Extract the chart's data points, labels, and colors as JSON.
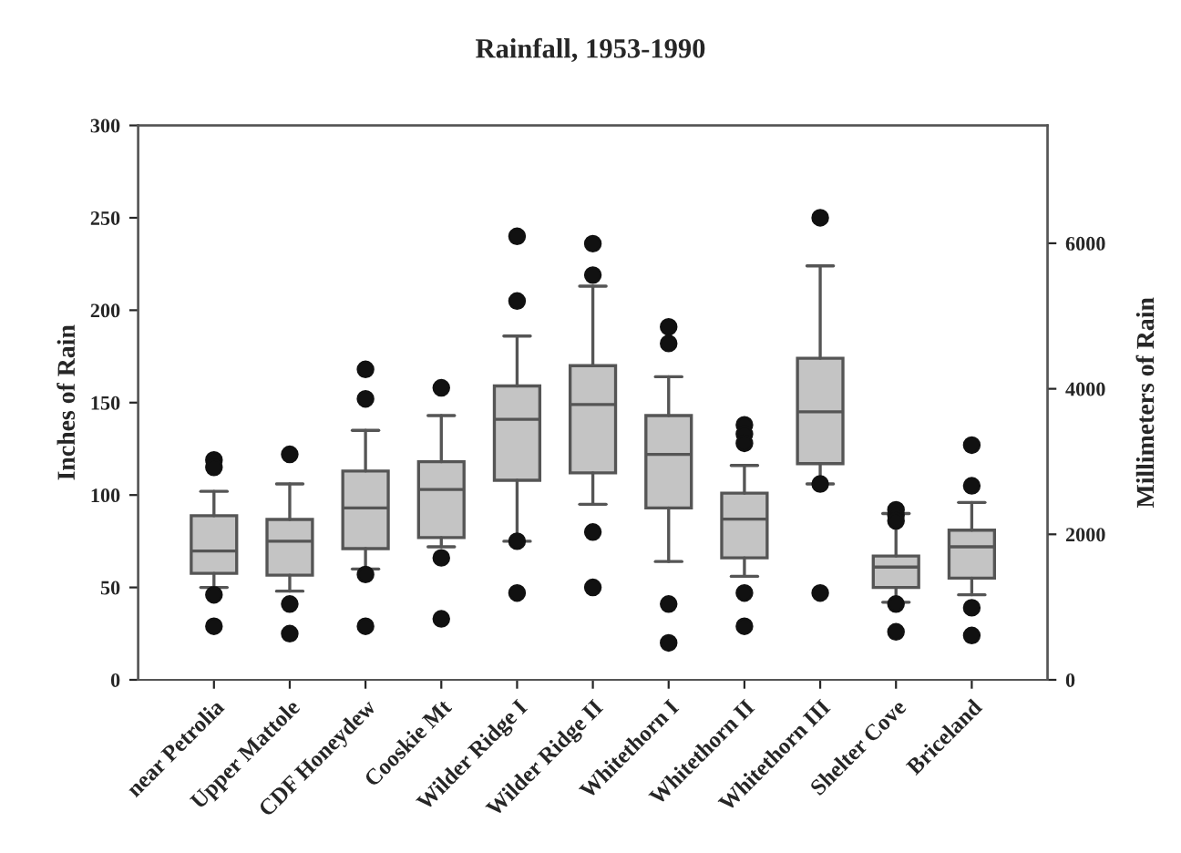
{
  "chart_data": {
    "type": "box",
    "title": "Rainfall, 1953-1990",
    "ylabel": "Inches of Rain",
    "y2label": "Millimeters of Rain",
    "categories": [
      "near Petrolia",
      "Upper Mattole",
      "CDF Honeydew",
      "Cooskie Mt",
      "Wilder Ridge I",
      "Wilder Ridge II",
      "Whitethorn I",
      "Whitethorn II",
      "Whitethorn III",
      "Shelter Cove",
      "Briceland"
    ],
    "boxes": [
      {
        "low": 50,
        "q1": 57.6,
        "median": 69.7,
        "q3": 88.8,
        "high": 102,
        "outliers": [
          119,
          115,
          46,
          29
        ]
      },
      {
        "low": 48,
        "q1": 56.6,
        "median": 75,
        "q3": 86.8,
        "high": 106,
        "outliers": [
          122,
          41,
          25
        ]
      },
      {
        "low": 60,
        "q1": 71,
        "median": 93,
        "q3": 113,
        "high": 135,
        "outliers": [
          168,
          152,
          57,
          29
        ]
      },
      {
        "low": 72,
        "q1": 77,
        "median": 103,
        "q3": 118,
        "high": 143,
        "outliers": [
          158,
          66,
          33
        ]
      },
      {
        "low": 75,
        "q1": 108,
        "median": 141,
        "q3": 159,
        "high": 186,
        "outliers": [
          240,
          205,
          75,
          47
        ]
      },
      {
        "low": 95,
        "q1": 112,
        "median": 149,
        "q3": 170,
        "high": 213,
        "outliers": [
          236,
          219,
          80,
          50
        ]
      },
      {
        "low": 64,
        "q1": 93,
        "median": 122,
        "q3": 143,
        "high": 164,
        "outliers": [
          191,
          182,
          41,
          20
        ]
      },
      {
        "low": 56,
        "q1": 66,
        "median": 87,
        "q3": 101,
        "high": 116,
        "outliers": [
          138,
          133,
          128,
          47,
          29
        ]
      },
      {
        "low": 106,
        "q1": 117,
        "median": 145,
        "q3": 174,
        "high": 224,
        "outliers": [
          250,
          106,
          47
        ]
      },
      {
        "low": 42,
        "q1": 50,
        "median": 61,
        "q3": 67,
        "high": 90,
        "outliers": [
          92,
          89,
          86,
          41,
          26
        ]
      },
      {
        "low": 46,
        "q1": 55,
        "median": 72,
        "q3": 81,
        "high": 96,
        "outliers": [
          127,
          105,
          39,
          24
        ]
      }
    ],
    "color": "#c4c4c4",
    "ylim": [
      0,
      300
    ],
    "yticks": [
      0,
      50,
      100,
      150,
      200,
      250,
      300
    ],
    "y2lim": [
      0,
      7620
    ],
    "y2ticks": [
      0,
      2000,
      4000,
      6000
    ],
    "grid": false,
    "legend": false
  }
}
